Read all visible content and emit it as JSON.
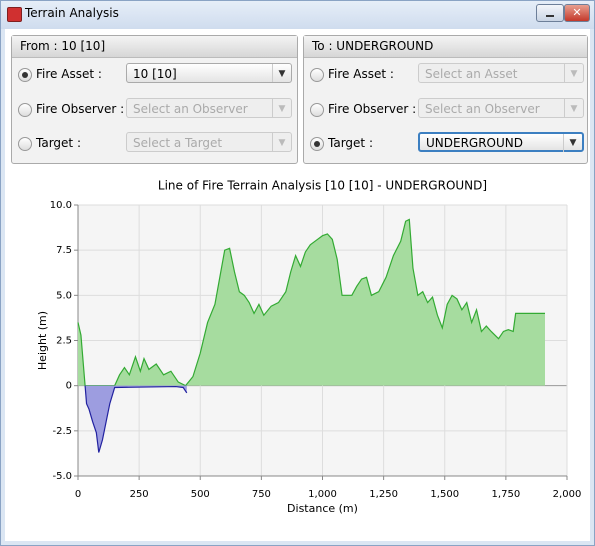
{
  "window": {
    "title": "Terrain Analysis"
  },
  "panels": [
    {
      "title": "From : 10 [10]",
      "rows": [
        {
          "label": "Fire Asset :",
          "value": "10 [10]",
          "selected": true,
          "enabled": true
        },
        {
          "label": "Fire Observer :",
          "value": "Select an Observer",
          "selected": false,
          "enabled": false
        },
        {
          "label": "Target :",
          "value": "Select a Target",
          "selected": false,
          "enabled": false
        }
      ]
    },
    {
      "title": "To : UNDERGROUND",
      "rows": [
        {
          "label": "Fire Asset :",
          "value": "Select an Asset",
          "selected": false,
          "enabled": false
        },
        {
          "label": "Fire Observer :",
          "value": "Select an Observer",
          "selected": false,
          "enabled": false
        },
        {
          "label": "Target :",
          "value": "UNDERGROUND",
          "selected": true,
          "enabled": true
        }
      ]
    }
  ],
  "chart_data": {
    "type": "area",
    "title": "Line of Fire Terrain Analysis [10 [10] - UNDERGROUND]",
    "x_label": "Distance (m)",
    "y_label": "Height (m)",
    "xlim": [
      0,
      2000
    ],
    "xticks": [
      0,
      250,
      500,
      750,
      {
        "value": 1000,
        "label": "1,000"
      },
      {
        "value": 1250,
        "label": "1,250"
      },
      {
        "value": 1500,
        "label": "1,500"
      },
      {
        "value": 1750,
        "label": "1,750"
      },
      {
        "value": 2000,
        "label": "2,000"
      }
    ],
    "ylim": [
      -5,
      10
    ],
    "yticks": [
      {
        "value": -5,
        "label": "-5.0"
      },
      -2.5,
      0,
      2.5,
      {
        "value": 5,
        "label": "5.0"
      },
      7.5,
      {
        "value": 10,
        "label": "10.0"
      }
    ],
    "grid": true,
    "series": [
      {
        "color": "#33aa33",
        "fill": "#a6dc9f",
        "x": [
          0,
          12,
          29,
          150,
          170,
          190,
          210,
          235,
          255,
          270,
          290,
          320,
          350,
          380,
          410,
          440,
          470,
          500,
          530,
          560,
          580,
          600,
          620,
          640,
          660,
          680,
          700,
          720,
          740,
          760,
          790,
          820,
          850,
          870,
          890,
          910,
          930,
          950,
          980,
          1000,
          1020,
          1040,
          1060,
          1080,
          1120,
          1140,
          1160,
          1180,
          1200,
          1230,
          1260,
          1290,
          1320,
          1340,
          1355,
          1370,
          1390,
          1410,
          1430,
          1450,
          1470,
          1490,
          1510,
          1530,
          1550,
          1570,
          1590,
          1610,
          1630,
          1650,
          1670,
          1690,
          1720,
          1740,
          1760,
          1780,
          1790,
          1850,
          1910
        ],
        "values": [
          3.5,
          2.8,
          0,
          0,
          0.6,
          1.0,
          0.6,
          1.6,
          0.8,
          1.5,
          0.9,
          1.2,
          0.6,
          0.8,
          0.2,
          0,
          0.5,
          1.8,
          3.5,
          4.5,
          6.0,
          7.5,
          7.6,
          6.3,
          5.2,
          5.0,
          4.6,
          4.0,
          4.5,
          3.9,
          4.4,
          4.6,
          5.2,
          6.3,
          7.2,
          6.6,
          7.4,
          7.8,
          8.1,
          8.3,
          8.4,
          8.1,
          7.0,
          5.0,
          5.0,
          5.5,
          5.9,
          6.0,
          5.0,
          5.2,
          6.0,
          7.2,
          8.0,
          9.1,
          9.2,
          6.5,
          5.0,
          5.2,
          4.6,
          4.9,
          3.9,
          3.2,
          4.5,
          5.0,
          4.8,
          4.2,
          4.6,
          3.5,
          4.2,
          3.0,
          3.3,
          3.0,
          2.6,
          3.0,
          3.1,
          3.0,
          4.0,
          4.0,
          4.0
        ]
      },
      {
        "color": "#2222a0",
        "fill": "#9d9de0",
        "x": [
          29,
          35,
          45,
          60,
          75,
          85,
          100,
          115,
          130,
          150,
          400,
          430,
          445
        ],
        "values": [
          0,
          -1.0,
          -1.3,
          -2.0,
          -2.6,
          -3.7,
          -3.0,
          -2.0,
          -1.0,
          -0.1,
          -0.05,
          -0.1,
          -0.4
        ]
      }
    ]
  }
}
